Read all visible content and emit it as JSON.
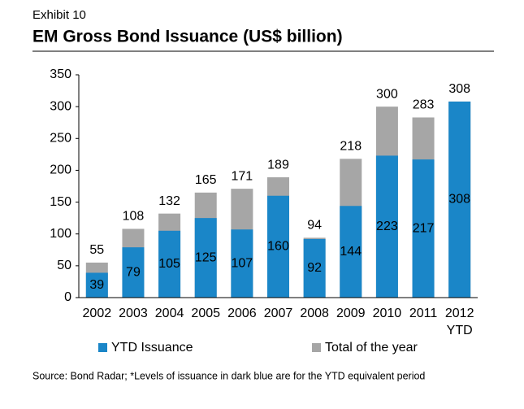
{
  "exhibit": "Exhibit 10",
  "chart_data": {
    "type": "bar",
    "title": "EM Gross Bond Issuance (US$ billion)",
    "categories": [
      "2002",
      "2003",
      "2004",
      "2005",
      "2006",
      "2007",
      "2008",
      "2009",
      "2010",
      "2011",
      "2012 YTD"
    ],
    "series": [
      {
        "name": "Total of the year",
        "color": "#a6a6a6",
        "values": [
          55,
          108,
          132,
          165,
          171,
          189,
          94,
          218,
          300,
          283,
          308
        ]
      },
      {
        "name": "YTD Issuance",
        "color": "#1a86c8",
        "values": [
          39,
          79,
          105,
          125,
          107,
          160,
          92,
          144,
          223,
          217,
          308
        ]
      }
    ],
    "ylim": [
      0,
      350
    ],
    "yticks": [
      0,
      50,
      100,
      150,
      200,
      250,
      300,
      350
    ],
    "grid": false,
    "legend": "bottom"
  },
  "source": "Source: Bond Radar; *Levels of issuance in dark blue are for the YTD equivalent period"
}
